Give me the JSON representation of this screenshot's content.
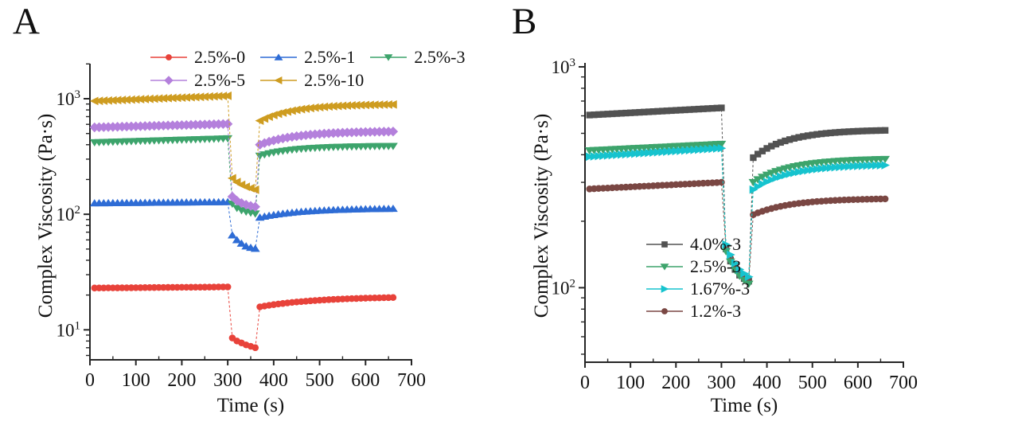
{
  "figure": {
    "background": "#ffffff"
  },
  "chart_data": [
    {
      "panel_label": "A",
      "type": "line",
      "title": "",
      "xlabel": "Time (s)",
      "ylabel": "Complex Viscosity (Pa·s)",
      "x_axis": {
        "min": 0,
        "max": 700,
        "major_ticks": [
          0,
          100,
          200,
          300,
          400,
          500,
          600,
          700
        ],
        "minor_step": 50
      },
      "y_axis": {
        "scale": "log",
        "unit": "Pa·s",
        "ylim": [
          5.5,
          2010
        ],
        "labeled_exponents": [
          1,
          2,
          3
        ]
      },
      "test_phases": {
        "rest_s": [
          10,
          300
        ],
        "shear_s": [
          310,
          360
        ],
        "recovery_s": [
          370,
          660
        ],
        "sample_interval_s": 10
      },
      "legend": {
        "position": "top",
        "rows": [
          [
            "2.5%-0",
            "2.5%-1",
            "2.5%-3"
          ],
          [
            "2.5%-5",
            "2.5%-10"
          ]
        ]
      },
      "draw_order": [
        0,
        1,
        2,
        3,
        4
      ],
      "series": [
        {
          "name": "2.5%-0",
          "color": "#e8423a",
          "marker": "circle",
          "rest": {
            "start": 23,
            "end": 23.5
          },
          "shear_values": [
            8.5,
            8.0,
            7.7,
            7.4,
            7.2,
            7.0
          ],
          "recovery": {
            "start": 15.8,
            "end": 19.5,
            "tau_s": 140
          }
        },
        {
          "name": "2.5%-1",
          "color": "#2e6cd5",
          "marker": "triangle-up",
          "rest": {
            "start": 125,
            "end": 128
          },
          "shear_values": [
            66,
            60,
            56,
            53,
            51.5,
            50.5
          ],
          "recovery": {
            "start": 94,
            "end": 113,
            "tau_s": 100
          }
        },
        {
          "name": "2.5%-3",
          "color": "#3da46c",
          "marker": "triangle-down",
          "rest": {
            "start": 418,
            "end": 452
          },
          "shear_values": [
            123,
            113,
            108,
            105,
            103,
            101
          ],
          "recovery": {
            "start": 320,
            "end": 390,
            "tau_s": 80
          }
        },
        {
          "name": "2.5%-5",
          "color": "#b480dc",
          "marker": "diamond",
          "rest": {
            "start": 565,
            "end": 605
          },
          "shear_values": [
            142,
            131,
            125,
            121,
            118,
            116
          ],
          "recovery": {
            "start": 400,
            "end": 525,
            "tau_s": 90
          }
        },
        {
          "name": "2.5%-10",
          "color": "#ce9c20",
          "marker": "triangle-left",
          "rest": {
            "start": 955,
            "end": 1060
          },
          "shear_values": [
            205,
            190,
            180,
            173,
            168,
            163
          ],
          "recovery": {
            "start": 645,
            "end": 900,
            "tau_s": 85
          }
        }
      ]
    },
    {
      "panel_label": "B",
      "type": "line",
      "title": "",
      "xlabel": "Time (s)",
      "ylabel": "Complex Viscosity (Pa·s)",
      "x_axis": {
        "min": 0,
        "max": 700,
        "major_ticks": [
          0,
          100,
          200,
          300,
          400,
          500,
          600,
          700
        ],
        "minor_step": 50
      },
      "y_axis": {
        "scale": "log",
        "unit": "Pa·s",
        "ylim": [
          46,
          1042
        ],
        "labeled_exponents": [
          2,
          3
        ]
      },
      "test_phases": {
        "rest_s": [
          10,
          300
        ],
        "shear_s": [
          310,
          360
        ],
        "recovery_s": [
          370,
          660
        ],
        "sample_interval_s": 10
      },
      "legend": {
        "position": "inside-left",
        "rows": [
          [
            "4.0%-3"
          ],
          [
            "2.5%-3"
          ],
          [
            "1.67%-3"
          ],
          [
            "1.2%-3"
          ]
        ]
      },
      "draw_order": [
        0,
        3,
        1,
        2
      ],
      "series": [
        {
          "name": "4.0%-3",
          "color": "#525252",
          "marker": "square",
          "rest": {
            "start": 605,
            "end": 652
          },
          "shear_values": [
            150,
            132,
            121,
            114,
            110,
            107
          ],
          "recovery": {
            "start": 388,
            "end": 520,
            "tau_s": 85
          }
        },
        {
          "name": "2.5%-3",
          "color": "#3da46c",
          "marker": "triangle-down",
          "rest": {
            "start": 418,
            "end": 447
          },
          "shear_values": [
            146,
            131,
            120,
            113,
            108,
            104
          ],
          "recovery": {
            "start": 300,
            "end": 385,
            "tau_s": 90
          }
        },
        {
          "name": "1.67%-3",
          "color": "#16c3ce",
          "marker": "triangle-right",
          "rest": {
            "start": 392,
            "end": 428
          },
          "shear_values": [
            157,
            141,
            129,
            121,
            116,
            112
          ],
          "recovery": {
            "start": 278,
            "end": 362,
            "tau_s": 90
          }
        },
        {
          "name": "1.2%-3",
          "color": "#7a4743",
          "marker": "circle",
          "rest": {
            "start": 280,
            "end": 300
          },
          "shear_values": [
            151,
            136,
            125,
            117,
            111,
            106
          ],
          "recovery": {
            "start": 214,
            "end": 254,
            "tau_s": 90
          }
        }
      ]
    }
  ]
}
